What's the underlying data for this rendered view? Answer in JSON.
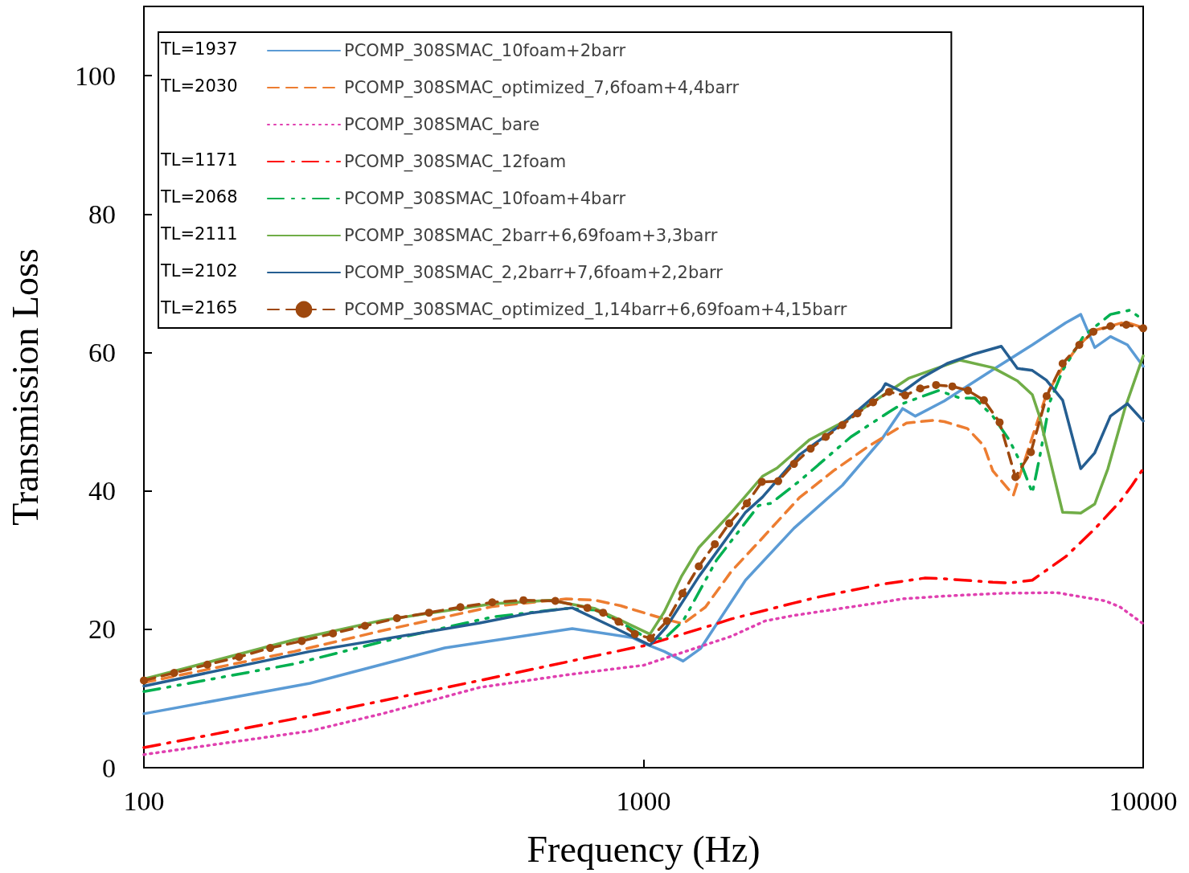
{
  "chart_data": {
    "type": "line",
    "xlabel": "Frequency (Hz)",
    "ylabel": "Transmission Loss",
    "log": "x",
    "grid": false,
    "legend": "top left",
    "xlim": [
      100,
      10000
    ],
    "xticks": [
      100,
      1000,
      10000
    ],
    "ylim": [
      0,
      110
    ],
    "yticks": [
      0,
      20,
      40,
      60,
      80,
      100
    ],
    "annotations": [
      "TL=1937",
      "TL=2030",
      null,
      "TL=1171",
      "TL=2068",
      "TL=2111",
      "TL=2102",
      "TL=2165"
    ],
    "series": [
      {
        "name": "PCOMP_308SMAC_10foam+2barr",
        "color": "#5b9bd5",
        "line_style": "solid",
        "marker": "none",
        "x": [
          100,
          215,
          400,
          720,
          950,
          1000,
          1100,
          1200,
          1300,
          1600,
          2000,
          2500,
          3000,
          3300,
          3500,
          4000,
          5000,
          6000,
          7000,
          7500,
          8000,
          8600,
          9300,
          10000
        ],
        "values": [
          7.8,
          12.2,
          17.3,
          20.1,
          18.8,
          18,
          16.8,
          15.4,
          17.2,
          27.1,
          34.6,
          40.8,
          47.5,
          51.9,
          50.8,
          53,
          57.5,
          61.1,
          64.3,
          65.5,
          60.7,
          62.3,
          61.1,
          58
        ]
      },
      {
        "name": "PCOMP_308SMAC_optimized_7,6foam+4,4barr",
        "color": "#ed7d31",
        "line_style": "dashed",
        "marker": "none",
        "x": [
          100,
          200,
          300,
          500,
          700,
          800,
          900,
          1000,
          1100,
          1200,
          1330,
          1500,
          1700,
          1850,
          2050,
          2400,
          2800,
          3360,
          3800,
          4000,
          4450,
          4800,
          5000,
          5500,
          6000,
          6400,
          6900,
          7400,
          8000,
          9200,
          10000
        ],
        "values": [
          12.3,
          16.8,
          19.8,
          23.3,
          24.4,
          24.2,
          23.4,
          22.4,
          21.5,
          20.8,
          23.2,
          28.4,
          32.6,
          35.5,
          39,
          42.9,
          46.3,
          49.8,
          50.2,
          50,
          49,
          46.5,
          42.9,
          39.4,
          47.8,
          53.9,
          57.8,
          60.9,
          63.2,
          64.4,
          63.6
        ]
      },
      {
        "name": "PCOMP_308SMAC_bare",
        "color": "#e040b0",
        "line_style": "dotted",
        "marker": "none",
        "x": [
          100,
          215,
          300,
          470,
          700,
          1000,
          1500,
          1750,
          2000,
          3000,
          3300,
          4000,
          5200,
          6700,
          8400,
          9000,
          10000
        ],
        "values": [
          1.9,
          5.3,
          7.8,
          11.6,
          13.4,
          14.8,
          19,
          21.2,
          22,
          23.9,
          24.4,
          24.8,
          25.2,
          25.3,
          24.1,
          23.2,
          20.8
        ]
      },
      {
        "name": "PCOMP_308SMAC_12foam",
        "color": "#ff0000",
        "line_style": "dashdot",
        "marker": "none",
        "x": [
          100,
          215,
          470,
          950,
          1000,
          1400,
          1500,
          2000,
          2250,
          3000,
          3650,
          4000,
          5000,
          5400,
          6000,
          7000,
          8000,
          9000,
          9500,
          10000
        ],
        "values": [
          2.9,
          7.5,
          12.6,
          17.3,
          17.6,
          20.8,
          21.5,
          23.8,
          24.7,
          26.5,
          27.4,
          27.3,
          26.8,
          26.7,
          27.1,
          30.5,
          34.5,
          38.5,
          40.8,
          43.2
        ]
      },
      {
        "name": "PCOMP_308SMAC_10foam+4barr",
        "color": "#00b050",
        "line_style": "dashdotdot",
        "marker": "none",
        "x": [
          100,
          200,
          300,
          500,
          700,
          800,
          900,
          1000,
          1100,
          1200,
          1400,
          1700,
          1800,
          2050,
          2600,
          3100,
          3300,
          3600,
          3900,
          4300,
          4600,
          5000,
          5400,
          5700,
          6000,
          6200,
          6500,
          6900,
          7600,
          8600,
          9400,
          10000
        ],
        "values": [
          11,
          15,
          18.2,
          21.8,
          23,
          22.8,
          21,
          19,
          18.6,
          21.2,
          30,
          37.9,
          38.2,
          41.4,
          47.8,
          51.4,
          52.6,
          53.6,
          54.5,
          53.4,
          53.4,
          50.8,
          47.3,
          43.9,
          39.7,
          44.7,
          52.8,
          57.4,
          62.4,
          65.5,
          66.1,
          64.7
        ]
      },
      {
        "name": "PCOMP_308SMAC_2barr+6,69foam+3,3barr",
        "color": "#70ad47",
        "line_style": "solid",
        "marker": "none",
        "x": [
          100,
          200,
          300,
          500,
          650,
          800,
          900,
          1030,
          1100,
          1190,
          1290,
          1500,
          1730,
          1850,
          2150,
          2550,
          2700,
          3400,
          4300,
          5000,
          5600,
          6000,
          6200,
          6900,
          7500,
          8000,
          8500,
          9200,
          10000
        ],
        "values": [
          12.8,
          18.5,
          21.3,
          23.7,
          24.2,
          23,
          21.3,
          19.3,
          22.5,
          27.6,
          31.8,
          36.9,
          42.1,
          43.3,
          47.4,
          50.2,
          51.5,
          56.3,
          58.9,
          57.8,
          55.9,
          53.9,
          50.8,
          36.9,
          36.8,
          38.1,
          43.2,
          52,
          59.5
        ]
      },
      {
        "name": "PCOMP_308SMAC_2,2barr+7,6foam+2,2barr",
        "color": "#255e91",
        "line_style": "solid",
        "marker": "none",
        "x": [
          100,
          215,
          470,
          600,
          720,
          870,
          1030,
          1110,
          1290,
          1600,
          1730,
          2050,
          2500,
          3000,
          3050,
          3300,
          3600,
          4050,
          4550,
          5200,
          5600,
          6000,
          6400,
          6900,
          7500,
          8000,
          8600,
          9300,
          10000
        ],
        "values": [
          11.8,
          16.8,
          20.9,
          22.4,
          23.1,
          20.3,
          17.7,
          20.3,
          27.6,
          36.9,
          39.1,
          45.2,
          49.7,
          54.6,
          55.5,
          54.3,
          56.3,
          58.4,
          59.7,
          60.9,
          57.7,
          57.4,
          56,
          53.1,
          43.2,
          45.5,
          50.8,
          52.6,
          50.1
        ]
      },
      {
        "name": "PCOMP_308SMAC_optimized_1,14barr+6,69foam+4,15barr",
        "color": "#9e480e",
        "line_style": "dashed",
        "marker": "circle",
        "x": [
          100,
          115,
          134,
          155,
          179,
          207,
          239,
          277,
          321,
          372,
          430,
          498,
          575,
          666,
          772,
          830,
          891,
          961,
          1033,
          1114,
          1197,
          1290,
          1389,
          1484,
          1610,
          1725,
          1860,
          2000,
          2160,
          2316,
          2500,
          2680,
          2880,
          3100,
          3340,
          3580,
          3850,
          4150,
          4460,
          4800,
          5160,
          5550,
          5960,
          6410,
          6900,
          7450,
          7950,
          8600,
          9250,
          10000
        ],
        "values": [
          12.6,
          13.7,
          14.9,
          16,
          17.3,
          18.3,
          19.4,
          20.5,
          21.6,
          22.4,
          23.2,
          23.9,
          24.2,
          24.1,
          23.1,
          22.4,
          21.1,
          19.3,
          18.7,
          21.2,
          25.2,
          29.1,
          32.3,
          35.3,
          38.2,
          41.3,
          41.4,
          43.9,
          46.1,
          47.8,
          49.5,
          51.2,
          52.8,
          54.3,
          53.8,
          54.8,
          55.3,
          55.1,
          54.5,
          53.1,
          49.9,
          42,
          45.6,
          53.7,
          58.4,
          61.1,
          63,
          63.8,
          64,
          63.5
        ]
      }
    ]
  }
}
